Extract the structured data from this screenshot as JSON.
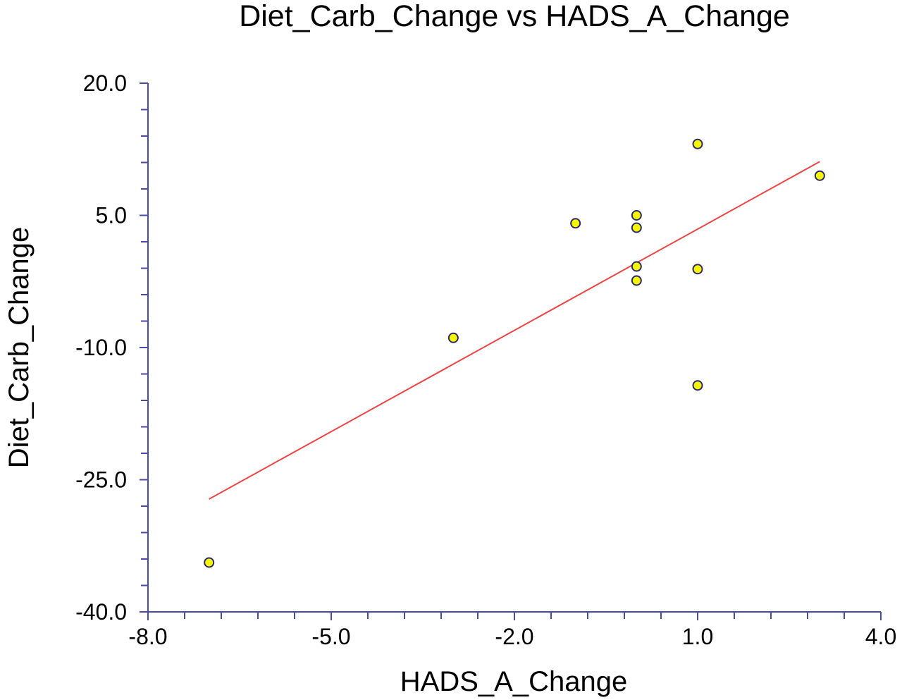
{
  "chart_data": {
    "type": "scatter",
    "title": "Diet_Carb_Change vs HADS_A_Change",
    "xlabel": "HADS_A_Change",
    "ylabel": "Diet_Carb_Change",
    "xlim": [
      -8.0,
      4.0
    ],
    "ylim": [
      -40.0,
      20.0
    ],
    "x_ticks": [
      -8.0,
      -5.0,
      -2.0,
      1.0,
      4.0
    ],
    "y_ticks": [
      20.0,
      5.0,
      -10.0,
      -25.0,
      -40.0
    ],
    "x_tick_labels": [
      "-8.0",
      "-5.0",
      "-2.0",
      "1.0",
      "4.0"
    ],
    "y_tick_labels": [
      "20.0",
      "5.0",
      "-10.0",
      "-25.0",
      "-40.0"
    ],
    "x_minor_step": 0.6,
    "y_minor_step": 3.0,
    "grid": false,
    "legend": "none",
    "series": [
      {
        "points": [
          {
            "x": -7.0,
            "y": -34.4
          },
          {
            "x": -3.0,
            "y": -8.9
          },
          {
            "x": -1.0,
            "y": 4.1
          },
          {
            "x": 0.0,
            "y": 5.0
          },
          {
            "x": 0.0,
            "y": 3.6
          },
          {
            "x": 0.0,
            "y": -0.8
          },
          {
            "x": 0.0,
            "y": -2.4
          },
          {
            "x": 1.0,
            "y": 13.1
          },
          {
            "x": 1.0,
            "y": -1.1
          },
          {
            "x": 1.0,
            "y": -14.3
          },
          {
            "x": 3.0,
            "y": 9.5
          }
        ],
        "marker_fill": "#f5f500",
        "marker_stroke": "#2a2a6e"
      }
    ],
    "fit_line": {
      "x": [
        -7.0,
        3.0
      ],
      "y": [
        -27.2,
        11.1
      ],
      "color": "#ee4444"
    },
    "axis_color": "#4a4aa8"
  }
}
